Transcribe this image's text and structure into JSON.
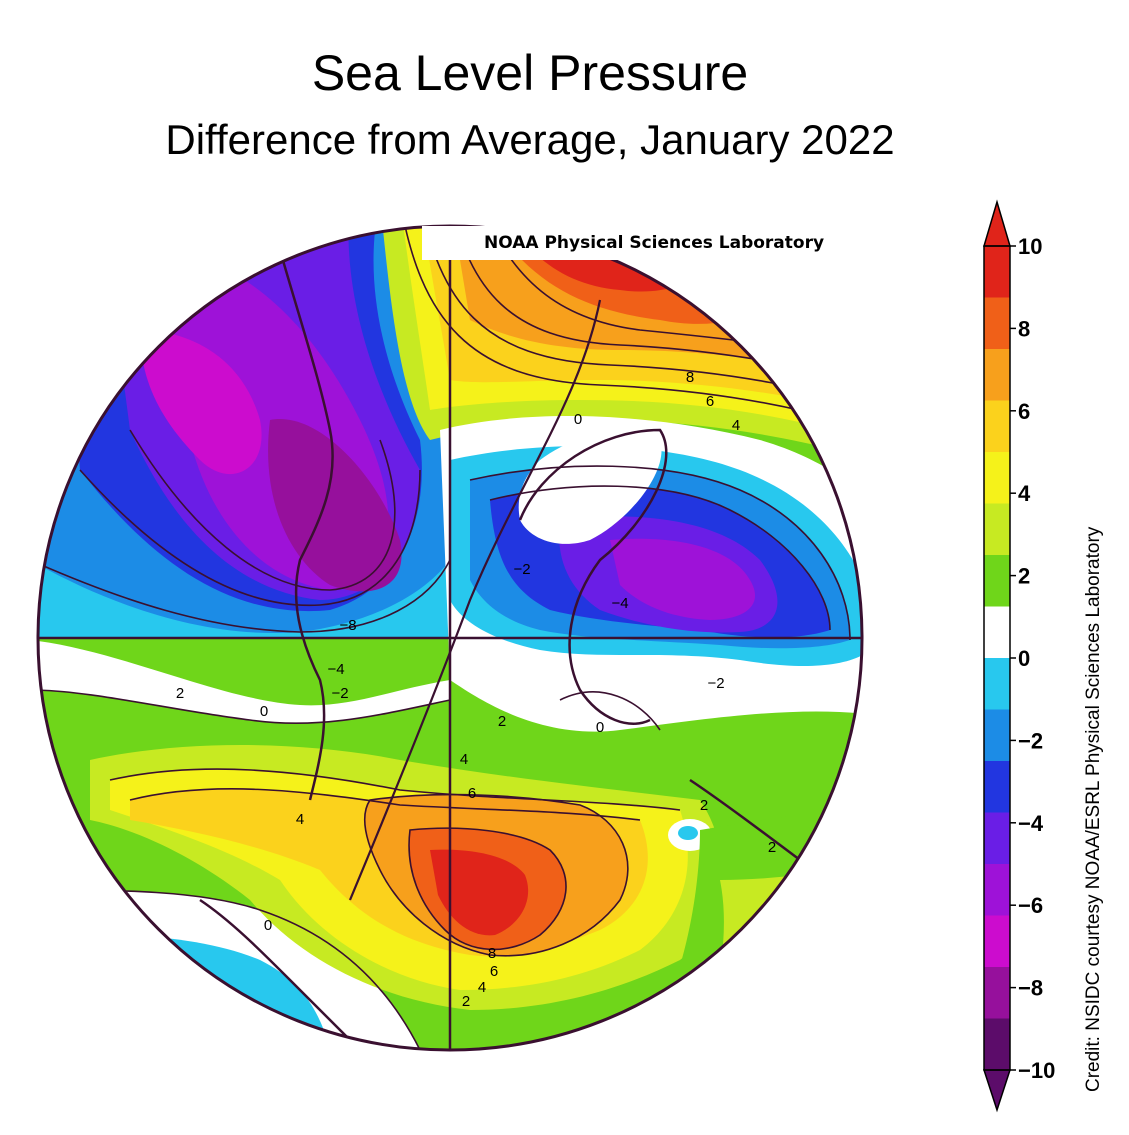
{
  "title": "Sea Level Pressure",
  "subtitle": "Difference from Average, January 2022",
  "watermark": "NOAA Physical Sciences Laboratory",
  "credit": "Credit: NSIDC courtesy NOAA/ESRL Physical Sciences Laboratory",
  "colorbar": {
    "ticks": [
      "10",
      "8",
      "6",
      "4",
      "2",
      "0",
      "−2",
      "−4",
      "−6",
      "−8",
      "−10"
    ],
    "colors": [
      "#e0241a",
      "#f06018",
      "#f7a01c",
      "#fbd21c",
      "#f5f21a",
      "#c7ea22",
      "#6fd61a",
      "#ffffff",
      "#28c8ee",
      "#1c8ce6",
      "#2236e0",
      "#6a1ee6",
      "#9e12d8",
      "#cc0cce",
      "#96109c",
      "#5c0c6a"
    ]
  },
  "contour_labels": {
    "a": "8",
    "b": "6",
    "c": "4",
    "d": "0",
    "e": "−2",
    "f": "−4",
    "g": "−8",
    "h": "−4",
    "i": "−2",
    "j": "0",
    "k": "2",
    "l": "−2",
    "m": "2",
    "n": "0",
    "o": "4",
    "p": "6",
    "q": "4",
    "r": "2",
    "s": "2",
    "t": "0",
    "u": "8",
    "v": "6",
    "w": "4",
    "x": "2"
  }
}
